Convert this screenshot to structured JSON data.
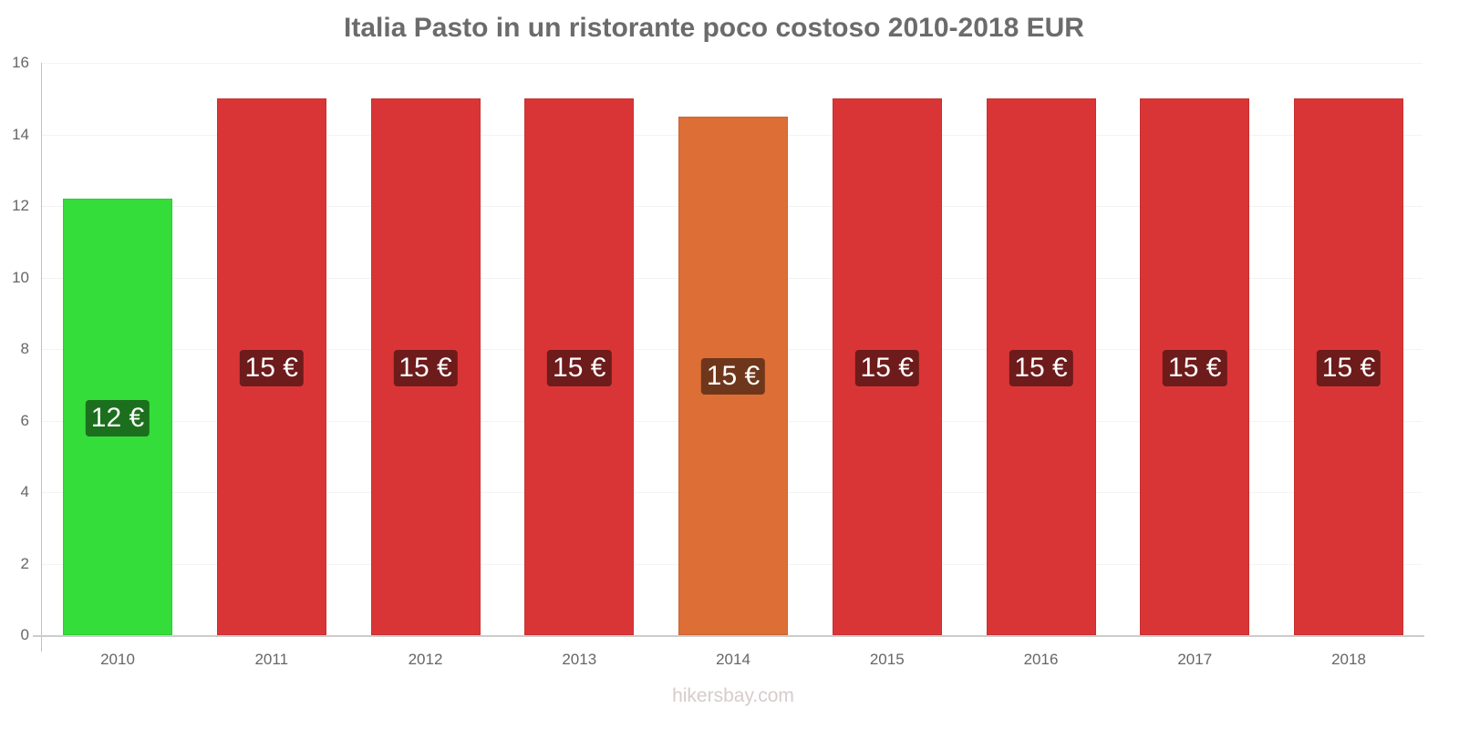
{
  "chart_data": {
    "type": "bar",
    "title": "Italia Pasto in un ristorante poco costoso 2010-2018 EUR",
    "xlabel": "",
    "ylabel": "",
    "ylim": [
      0,
      16
    ],
    "yticks": [
      0,
      2,
      4,
      6,
      8,
      10,
      12,
      14,
      16
    ],
    "grid": true,
    "legend": null,
    "categories": [
      "2010",
      "2011",
      "2012",
      "2013",
      "2014",
      "2015",
      "2016",
      "2017",
      "2018"
    ],
    "values": [
      12.2,
      15,
      15,
      15,
      14.5,
      15,
      15,
      15,
      15
    ],
    "data_labels": [
      "12 €",
      "15 €",
      "15 €",
      "15 €",
      "15 €",
      "15 €",
      "15 €",
      "15 €",
      "15 €"
    ],
    "bar_colors": [
      "#35dd3a",
      "#da3536",
      "#da3536",
      "#da3536",
      "#dc6e36",
      "#da3536",
      "#da3536",
      "#da3536",
      "#da3536"
    ],
    "label_colors": [
      "#1b6f1d",
      "#6d1b1b",
      "#6d1b1b",
      "#6d1b1b",
      "#6e371b",
      "#6d1b1b",
      "#6d1b1b",
      "#6d1b1b",
      "#6d1b1b"
    ]
  },
  "watermark": "hikersbay.com"
}
